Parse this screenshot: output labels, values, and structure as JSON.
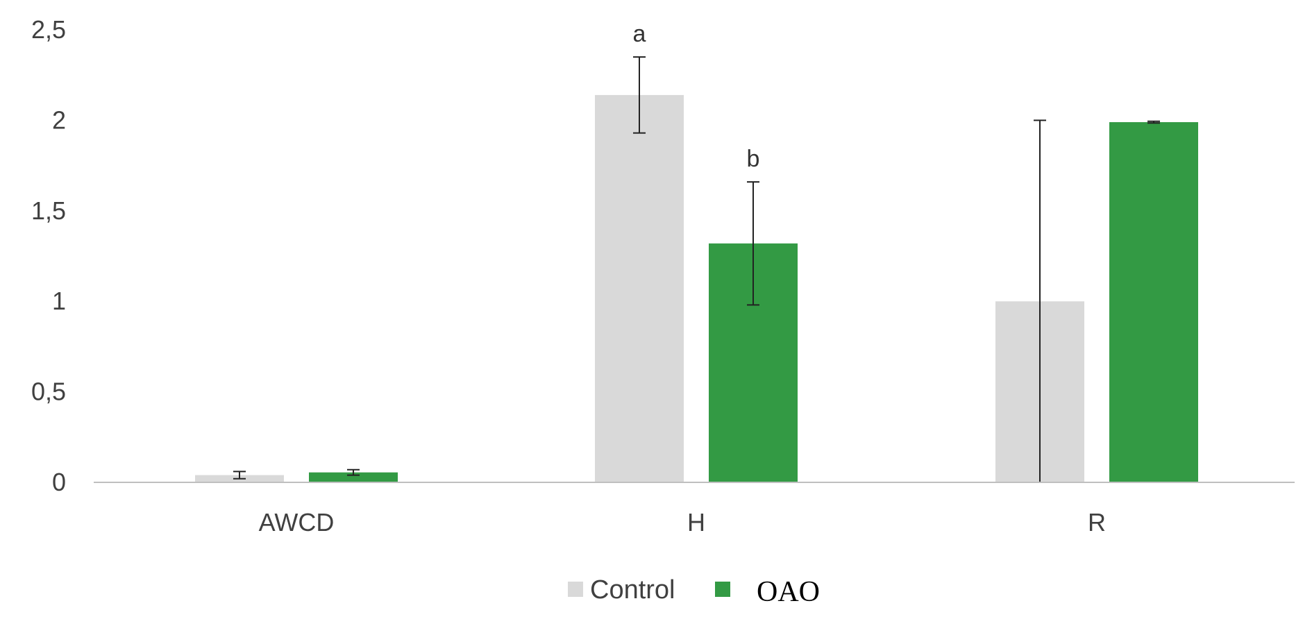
{
  "chart_data": {
    "type": "bar",
    "categories": [
      "AWCD",
      "H",
      "R"
    ],
    "series": [
      {
        "name": "Control",
        "color": "#d9d9d9",
        "values": [
          0.04,
          2.14,
          1.0
        ],
        "errors": [
          0.02,
          0.21,
          1.0
        ]
      },
      {
        "name": "OAO",
        "color": "#339a44",
        "values": [
          0.055,
          1.32,
          1.99
        ],
        "errors": [
          0.015,
          0.34,
          0.005
        ]
      }
    ],
    "yticks": [
      "0",
      "0,5",
      "1",
      "1,5",
      "2",
      "2,5"
    ],
    "ylim": [
      0,
      2.5
    ],
    "significance": [
      {
        "category": "H",
        "series": "Control",
        "label": "a"
      },
      {
        "category": "H",
        "series": "OAO",
        "label": "b"
      }
    ],
    "legend": {
      "position": "bottom"
    },
    "grid": false,
    "axis_color": "#bfbfbf",
    "error_bar_color": "#222222"
  }
}
